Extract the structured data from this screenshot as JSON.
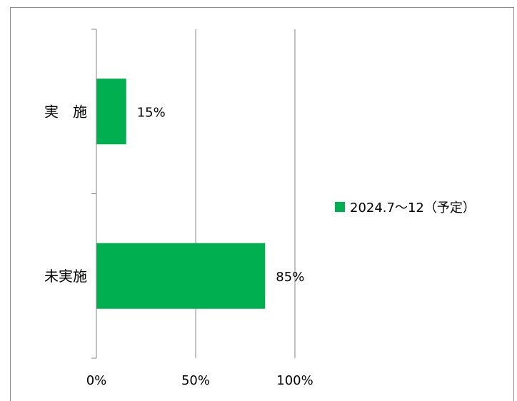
{
  "chart_data": {
    "type": "bar",
    "orientation": "horizontal",
    "categories": [
      "実　施",
      "未実施"
    ],
    "series": [
      {
        "name": "2024.7～12（予定）",
        "values": [
          15,
          85
        ],
        "color": "#00b050"
      }
    ],
    "data_labels": [
      "15%",
      "85%"
    ],
    "x_ticks": [
      "0%",
      "50%",
      "100%"
    ],
    "xlim": [
      0,
      100
    ],
    "grid": true,
    "legend_position": "right",
    "title": "",
    "xlabel": "",
    "ylabel": ""
  }
}
